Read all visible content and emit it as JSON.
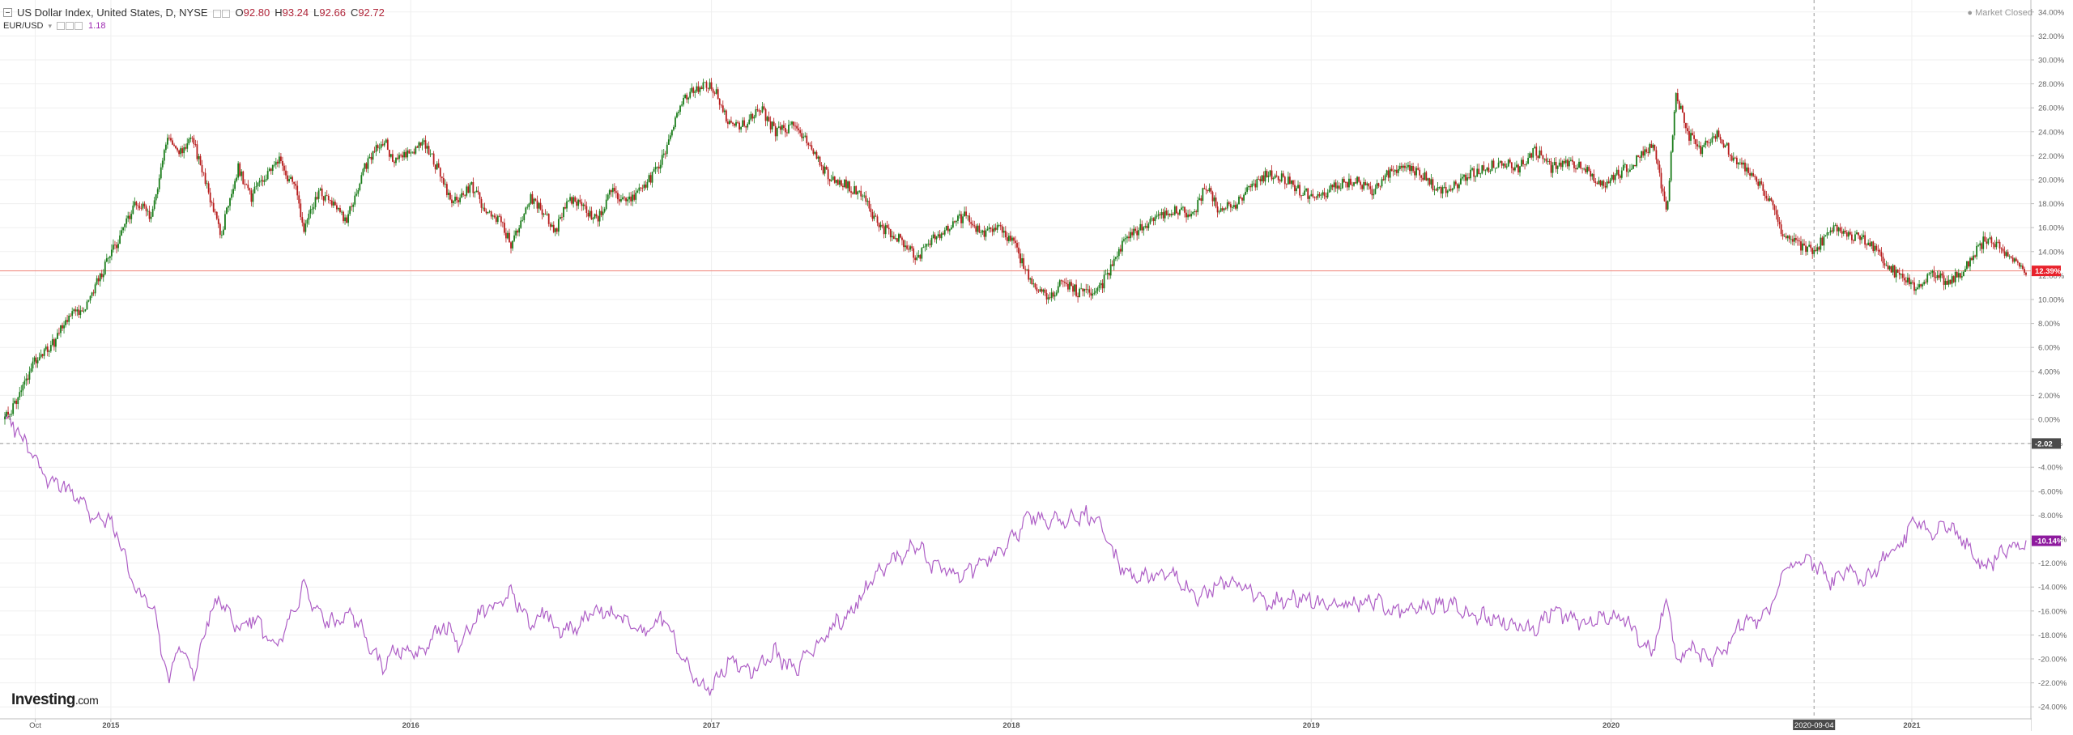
{
  "legend": {
    "symbol_title": "US Dollar Index, United States, D, NYSE",
    "open_key": "O",
    "open_val": "92.80",
    "high_key": "H",
    "high_val": "93.24",
    "low_key": "L",
    "low_val": "92.66",
    "close_key": "C",
    "close_val": "92.72",
    "compare_symbol": "EUR/USD",
    "compare_value": "1.18"
  },
  "status": {
    "market": "Market Closed",
    "brand_main": "Investing",
    "brand_suffix": ".com"
  },
  "colors": {
    "up": "#1a7c1a",
    "down": "#b71c1c",
    "compare_line": "#ae5fc6",
    "last_line": "#f0857a",
    "last_badge": "#e8222c",
    "cross_badge": "#4a4a4a",
    "compare_badge": "#8e1a9e",
    "grid": "#efefef"
  },
  "chart_data": {
    "type": "line",
    "title": "US Dollar Index, United States, D, NYSE",
    "y_axis": {
      "unit": "%",
      "range": [
        -25,
        35
      ],
      "position": "right",
      "tick_labels": [
        "34.00%",
        "32.00%",
        "30.00%",
        "28.00%",
        "26.00%",
        "24.00%",
        "22.00%",
        "20.00%",
        "18.00%",
        "16.00%",
        "14.00%",
        "12.00%",
        "10.00%",
        "8.00%",
        "6.00%",
        "4.00%",
        "2.00%",
        "0.00%",
        "-2.00%",
        "-4.00%",
        "-6.00%",
        "-8.00%",
        "-10.00%",
        "-12.00%",
        "-14.00%",
        "-16.00%",
        "-18.00%",
        "-20.00%",
        "-22.00%",
        "-24.00%"
      ]
    },
    "x_axis": {
      "type": "date",
      "range": [
        "2014-08-25",
        "2021-05-21"
      ],
      "tick_labels": [
        {
          "label": "Oct",
          "date": "2014-10-01"
        },
        {
          "label": "2015",
          "date": "2015-01-01"
        },
        {
          "label": "2016",
          "date": "2016-01-01"
        },
        {
          "label": "2017",
          "date": "2017-01-01"
        },
        {
          "label": "2018",
          "date": "2018-01-01"
        },
        {
          "label": "2019",
          "date": "2019-01-01"
        },
        {
          "label": "2020",
          "date": "2020-01-01"
        },
        {
          "label": "2021",
          "date": "2021-01-01"
        }
      ]
    },
    "grid": true,
    "crosshair": {
      "date": "2020-09-04",
      "label": "2020-09-04",
      "value": -2.02,
      "value_label": "-2.02"
    },
    "last_values": {
      "main": 12.39,
      "main_label": "12.39%",
      "compare": -10.14,
      "compare_label": "-10.14%"
    },
    "series": [
      {
        "name": "US Dollar Index, United States, D, NYSE",
        "style": "candlestick",
        "points": [
          [
            "2014-08-25",
            0.0
          ],
          [
            "2014-09-10",
            1.5
          ],
          [
            "2014-10-01",
            5.0
          ],
          [
            "2014-10-20",
            6.0
          ],
          [
            "2014-11-10",
            8.5
          ],
          [
            "2014-12-01",
            9.5
          ],
          [
            "2014-12-20",
            12.0
          ],
          [
            "2015-01-10",
            15.0
          ],
          [
            "2015-01-31",
            18.0
          ],
          [
            "2015-02-20",
            17.0
          ],
          [
            "2015-03-12",
            24.0
          ],
          [
            "2015-03-25",
            22.0
          ],
          [
            "2015-04-10",
            23.5
          ],
          [
            "2015-04-25",
            20.0
          ],
          [
            "2015-05-15",
            15.5
          ],
          [
            "2015-06-05",
            21.0
          ],
          [
            "2015-06-20",
            18.5
          ],
          [
            "2015-07-10",
            20.5
          ],
          [
            "2015-07-25",
            21.5
          ],
          [
            "2015-08-15",
            19.0
          ],
          [
            "2015-08-24",
            15.5
          ],
          [
            "2015-09-10",
            19.0
          ],
          [
            "2015-10-01",
            18.0
          ],
          [
            "2015-10-15",
            16.5
          ],
          [
            "2015-11-05",
            21.0
          ],
          [
            "2015-11-30",
            23.5
          ],
          [
            "2015-12-10",
            21.5
          ],
          [
            "2015-12-31",
            22.5
          ],
          [
            "2016-01-20",
            23.0
          ],
          [
            "2016-02-05",
            20.5
          ],
          [
            "2016-02-20",
            18.0
          ],
          [
            "2016-03-15",
            19.5
          ],
          [
            "2016-04-01",
            17.5
          ],
          [
            "2016-04-20",
            16.5
          ],
          [
            "2016-05-02",
            14.5
          ],
          [
            "2016-05-25",
            18.5
          ],
          [
            "2016-06-15",
            17.0
          ],
          [
            "2016-06-24",
            15.5
          ],
          [
            "2016-07-10",
            18.5
          ],
          [
            "2016-08-01",
            17.5
          ],
          [
            "2016-08-15",
            16.5
          ],
          [
            "2016-09-01",
            19.0
          ],
          [
            "2016-09-20",
            18.0
          ],
          [
            "2016-10-10",
            19.5
          ],
          [
            "2016-10-30",
            21.0
          ],
          [
            "2016-11-10",
            23.5
          ],
          [
            "2016-11-25",
            26.5
          ],
          [
            "2016-12-20",
            28.0
          ],
          [
            "2017-01-05",
            27.5
          ],
          [
            "2017-01-20",
            25.0
          ],
          [
            "2017-02-10",
            24.5
          ],
          [
            "2017-03-01",
            26.0
          ],
          [
            "2017-03-20",
            24.0
          ],
          [
            "2017-04-10",
            24.5
          ],
          [
            "2017-05-01",
            23.0
          ],
          [
            "2017-05-20",
            20.5
          ],
          [
            "2017-06-15",
            19.5
          ],
          [
            "2017-07-05",
            18.5
          ],
          [
            "2017-07-25",
            16.0
          ],
          [
            "2017-08-10",
            15.5
          ],
          [
            "2017-09-08",
            13.5
          ],
          [
            "2017-09-25",
            15.0
          ],
          [
            "2017-10-15",
            16.0
          ],
          [
            "2017-11-05",
            17.0
          ],
          [
            "2017-11-25",
            15.5
          ],
          [
            "2017-12-15",
            16.0
          ],
          [
            "2018-01-05",
            14.5
          ],
          [
            "2018-01-25",
            11.5
          ],
          [
            "2018-02-15",
            10.0
          ],
          [
            "2018-03-05",
            11.5
          ],
          [
            "2018-03-25",
            10.5
          ],
          [
            "2018-04-15",
            10.5
          ],
          [
            "2018-05-01",
            12.5
          ],
          [
            "2018-05-20",
            15.0
          ],
          [
            "2018-06-10",
            16.0
          ],
          [
            "2018-06-30",
            17.0
          ],
          [
            "2018-07-20",
            17.5
          ],
          [
            "2018-08-10",
            17.0
          ],
          [
            "2018-08-25",
            19.5
          ],
          [
            "2018-09-10",
            17.5
          ],
          [
            "2018-10-01",
            18.0
          ],
          [
            "2018-10-20",
            19.5
          ],
          [
            "2018-11-10",
            20.5
          ],
          [
            "2018-12-01",
            20.0
          ],
          [
            "2018-12-20",
            19.0
          ],
          [
            "2019-01-10",
            18.5
          ],
          [
            "2019-02-01",
            19.5
          ],
          [
            "2019-02-25",
            20.0
          ],
          [
            "2019-03-15",
            19.0
          ],
          [
            "2019-04-05",
            20.5
          ],
          [
            "2019-04-25",
            21.0
          ],
          [
            "2019-05-15",
            20.5
          ],
          [
            "2019-06-05",
            19.0
          ],
          [
            "2019-06-25",
            19.5
          ],
          [
            "2019-07-15",
            20.5
          ],
          [
            "2019-08-01",
            21.0
          ],
          [
            "2019-08-20",
            21.5
          ],
          [
            "2019-09-10",
            21.0
          ],
          [
            "2019-09-30",
            22.5
          ],
          [
            "2019-10-20",
            21.0
          ],
          [
            "2019-11-10",
            21.5
          ],
          [
            "2019-11-30",
            21.0
          ],
          [
            "2019-12-20",
            19.5
          ],
          [
            "2020-01-10",
            20.5
          ],
          [
            "2020-01-30",
            21.5
          ],
          [
            "2020-02-20",
            23.0
          ],
          [
            "2020-03-09",
            17.5
          ],
          [
            "2020-03-20",
            27.5
          ],
          [
            "2020-04-01",
            24.0
          ],
          [
            "2020-04-20",
            22.5
          ],
          [
            "2020-05-10",
            24.0
          ],
          [
            "2020-05-30",
            21.5
          ],
          [
            "2020-06-20",
            20.5
          ],
          [
            "2020-07-10",
            18.5
          ],
          [
            "2020-07-31",
            15.0
          ],
          [
            "2020-08-20",
            14.5
          ],
          [
            "2020-09-04",
            14.0
          ],
          [
            "2020-09-25",
            16.0
          ],
          [
            "2020-10-15",
            15.5
          ],
          [
            "2020-11-05",
            15.0
          ],
          [
            "2020-11-25",
            13.5
          ],
          [
            "2020-12-15",
            12.0
          ],
          [
            "2021-01-06",
            11.0
          ],
          [
            "2021-01-25",
            12.0
          ],
          [
            "2021-02-15",
            11.5
          ],
          [
            "2021-03-05",
            12.5
          ],
          [
            "2021-03-31",
            15.0
          ],
          [
            "2021-04-15",
            14.5
          ],
          [
            "2021-05-05",
            13.5
          ],
          [
            "2021-05-21",
            12.39
          ]
        ]
      },
      {
        "name": "EUR/USD",
        "style": "line",
        "points": [
          [
            "2014-08-25",
            0.0
          ],
          [
            "2014-09-10",
            -1.0
          ],
          [
            "2014-09-25",
            -3.0
          ],
          [
            "2014-10-15",
            -5.0
          ],
          [
            "2014-11-01",
            -5.5
          ],
          [
            "2014-11-20",
            -6.5
          ],
          [
            "2014-12-10",
            -8.0
          ],
          [
            "2014-12-31",
            -8.5
          ],
          [
            "2015-01-15",
            -11.0
          ],
          [
            "2015-02-01",
            -14.5
          ],
          [
            "2015-02-20",
            -15.5
          ],
          [
            "2015-03-13",
            -22.0
          ],
          [
            "2015-03-25",
            -18.5
          ],
          [
            "2015-04-13",
            -21.5
          ],
          [
            "2015-04-30",
            -16.5
          ],
          [
            "2015-05-15",
            -15.0
          ],
          [
            "2015-06-05",
            -17.5
          ],
          [
            "2015-06-25",
            -16.5
          ],
          [
            "2015-07-15",
            -19.0
          ],
          [
            "2015-07-31",
            -18.0
          ],
          [
            "2015-08-24",
            -14.0
          ],
          [
            "2015-09-10",
            -16.5
          ],
          [
            "2015-10-01",
            -17.0
          ],
          [
            "2015-10-20",
            -16.0
          ],
          [
            "2015-11-10",
            -18.5
          ],
          [
            "2015-11-30",
            -21.0
          ],
          [
            "2015-12-10",
            -19.0
          ],
          [
            "2015-12-31",
            -19.5
          ],
          [
            "2016-01-20",
            -19.0
          ],
          [
            "2016-02-10",
            -17.0
          ],
          [
            "2016-03-01",
            -19.0
          ],
          [
            "2016-03-20",
            -16.5
          ],
          [
            "2016-04-10",
            -15.5
          ],
          [
            "2016-05-03",
            -14.5
          ],
          [
            "2016-05-25",
            -17.0
          ],
          [
            "2016-06-15",
            -16.0
          ],
          [
            "2016-06-24",
            -17.5
          ],
          [
            "2016-07-15",
            -17.5
          ],
          [
            "2016-08-15",
            -16.0
          ],
          [
            "2016-09-10",
            -16.5
          ],
          [
            "2016-10-10",
            -18.0
          ],
          [
            "2016-11-01",
            -16.5
          ],
          [
            "2016-11-25",
            -19.5
          ],
          [
            "2016-12-20",
            -22.5
          ],
          [
            "2017-01-05",
            -22.0
          ],
          [
            "2017-01-25",
            -20.0
          ],
          [
            "2017-02-20",
            -21.0
          ],
          [
            "2017-03-20",
            -19.5
          ],
          [
            "2017-04-10",
            -21.0
          ],
          [
            "2017-05-01",
            -19.5
          ],
          [
            "2017-05-25",
            -17.5
          ],
          [
            "2017-06-20",
            -16.0
          ],
          [
            "2017-07-15",
            -13.5
          ],
          [
            "2017-08-05",
            -12.0
          ],
          [
            "2017-09-08",
            -10.5
          ],
          [
            "2017-09-25",
            -12.0
          ],
          [
            "2017-10-15",
            -12.5
          ],
          [
            "2017-11-05",
            -13.0
          ],
          [
            "2017-11-25",
            -12.0
          ],
          [
            "2017-12-20",
            -11.0
          ],
          [
            "2018-01-10",
            -9.5
          ],
          [
            "2018-01-25",
            -8.0
          ],
          [
            "2018-02-15",
            -8.5
          ],
          [
            "2018-03-10",
            -8.5
          ],
          [
            "2018-04-01",
            -8.0
          ],
          [
            "2018-04-20",
            -9.0
          ],
          [
            "2018-05-10",
            -12.0
          ],
          [
            "2018-06-01",
            -13.5
          ],
          [
            "2018-06-25",
            -13.0
          ],
          [
            "2018-07-20",
            -13.0
          ],
          [
            "2018-08-15",
            -15.0
          ],
          [
            "2018-09-05",
            -14.0
          ],
          [
            "2018-09-25",
            -13.5
          ],
          [
            "2018-10-15",
            -14.0
          ],
          [
            "2018-11-10",
            -15.5
          ],
          [
            "2018-12-01",
            -15.0
          ],
          [
            "2018-12-31",
            -15.0
          ],
          [
            "2019-01-20",
            -15.5
          ],
          [
            "2019-02-15",
            -15.5
          ],
          [
            "2019-03-15",
            -15.0
          ],
          [
            "2019-04-10",
            -16.0
          ],
          [
            "2019-05-01",
            -16.0
          ],
          [
            "2019-06-01",
            -15.5
          ],
          [
            "2019-06-25",
            -15.5
          ],
          [
            "2019-07-15",
            -16.5
          ],
          [
            "2019-08-10",
            -16.5
          ],
          [
            "2019-09-01",
            -17.0
          ],
          [
            "2019-09-30",
            -17.5
          ],
          [
            "2019-10-20",
            -16.0
          ],
          [
            "2019-11-10",
            -16.5
          ],
          [
            "2019-11-30",
            -17.0
          ],
          [
            "2019-12-20",
            -16.5
          ],
          [
            "2020-01-15",
            -16.5
          ],
          [
            "2020-02-20",
            -19.5
          ],
          [
            "2020-03-09",
            -15.0
          ],
          [
            "2020-03-20",
            -20.0
          ],
          [
            "2020-04-05",
            -19.0
          ],
          [
            "2020-04-25",
            -20.0
          ],
          [
            "2020-05-15",
            -19.5
          ],
          [
            "2020-06-05",
            -17.0
          ],
          [
            "2020-06-25",
            -17.0
          ],
          [
            "2020-07-15",
            -15.5
          ],
          [
            "2020-07-31",
            -12.5
          ],
          [
            "2020-08-20",
            -12.0
          ],
          [
            "2020-09-04",
            -12.0
          ],
          [
            "2020-09-25",
            -13.5
          ],
          [
            "2020-10-15",
            -12.5
          ],
          [
            "2020-11-05",
            -13.5
          ],
          [
            "2020-11-25",
            -12.0
          ],
          [
            "2020-12-15",
            -10.5
          ],
          [
            "2021-01-06",
            -8.5
          ],
          [
            "2021-01-25",
            -9.5
          ],
          [
            "2021-02-15",
            -9.0
          ],
          [
            "2021-03-05",
            -10.0
          ],
          [
            "2021-03-31",
            -12.5
          ],
          [
            "2021-04-15",
            -11.5
          ],
          [
            "2021-05-05",
            -10.5
          ],
          [
            "2021-05-21",
            -10.14
          ]
        ]
      }
    ]
  }
}
